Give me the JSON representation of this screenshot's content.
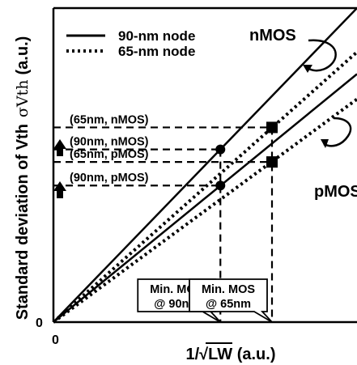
{
  "chart_data": {
    "type": "line",
    "xlabel": "1/√LW (a.u.)",
    "ylabel": "Standard deviation of Vth",
    "ylabel_symbol": "σVth",
    "ylabel_unit": "(a.u.)",
    "origin_x_label": "0",
    "origin_y_label": "0",
    "legend": [
      {
        "label": "90-nm node",
        "style": "solid"
      },
      {
        "label": "65-nm node",
        "style": "dotted"
      }
    ],
    "group_labels": [
      "nMOS",
      "pMOS"
    ],
    "series": [
      {
        "device": "nMOS",
        "node": "90-nm node",
        "style": "solid",
        "x": [
          0,
          1.0
        ],
        "y": [
          0,
          1.0
        ]
      },
      {
        "device": "nMOS",
        "node": "65-nm node",
        "style": "dotted",
        "x": [
          0,
          1.0
        ],
        "y": [
          0,
          0.86
        ]
      },
      {
        "device": "pMOS",
        "node": "90-nm node",
        "style": "solid",
        "x": [
          0,
          1.0
        ],
        "y": [
          0,
          0.79
        ]
      },
      {
        "device": "pMOS",
        "node": "65-nm node",
        "style": "dotted",
        "x": [
          0,
          1.0
        ],
        "y": [
          0,
          0.71
        ]
      }
    ],
    "points": [
      {
        "label": "(90nm, nMOS)",
        "x": 0.55,
        "y": 0.55,
        "marker": "circle"
      },
      {
        "label": "(90nm, pMOS)",
        "x": 0.55,
        "y": 0.435,
        "marker": "circle"
      },
      {
        "label": "(65nm, nMOS)",
        "x": 0.72,
        "y": 0.62,
        "marker": "square"
      },
      {
        "label": "(65nm, pMOS)",
        "x": 0.72,
        "y": 0.51,
        "marker": "square"
      }
    ],
    "annotations": [
      {
        "text": [
          "Min. MOS",
          "@ 90nm"
        ],
        "x": 0.55
      },
      {
        "text": [
          "Min. MOS",
          "@ 65nm"
        ],
        "x": 0.72
      }
    ],
    "xlim": [
      0,
      1.0
    ],
    "ylim": [
      0,
      1.0
    ],
    "grid": false,
    "legend_position": "top-left"
  }
}
